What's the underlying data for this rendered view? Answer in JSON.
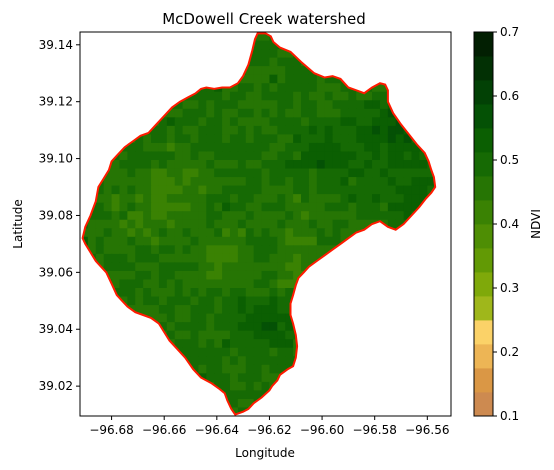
{
  "chart_data": {
    "type": "heatmap",
    "title": "McDowell Creek watershed",
    "xlabel": "Longitude",
    "ylabel": "Latitude",
    "xlim": [
      -96.692,
      -96.551
    ],
    "ylim": [
      39.0095,
      39.1445
    ],
    "xticks": [
      -96.68,
      -96.66,
      -96.64,
      -96.62,
      -96.6,
      -96.58,
      -96.56
    ],
    "xtick_labels": [
      "−96.68",
      "−96.66",
      "−96.64",
      "−96.62",
      "−96.60",
      "−96.58",
      "−96.56"
    ],
    "yticks": [
      39.02,
      39.04,
      39.06,
      39.08,
      39.1,
      39.12,
      39.14
    ],
    "ytick_labels": [
      "39.02",
      "39.04",
      "39.06",
      "39.08",
      "39.10",
      "39.12",
      "39.14"
    ],
    "grid": false,
    "colorbar": {
      "label": "NDVI",
      "range": [
        0.1,
        0.7
      ],
      "ticks": [
        0.1,
        0.2,
        0.3,
        0.4,
        0.5,
        0.6,
        0.7
      ],
      "tick_labels": [
        "0.1",
        "0.2",
        "0.3",
        "0.4",
        "0.5",
        "0.6",
        "0.7"
      ],
      "colors": [
        "#cd8a50",
        "#da9745",
        "#edb555",
        "#fbd268",
        "#9fb71b",
        "#7fa90a",
        "#629a05",
        "#4e8e04",
        "#3a8203",
        "#267504",
        "#166a04",
        "#0b5f02",
        "#045105",
        "#024105",
        "#023004",
        "#021f02"
      ]
    },
    "boundary": {
      "color": "#ff1a00",
      "lon": [
        -96.6245,
        -96.6215,
        -96.6195,
        -96.6185,
        -96.616,
        -96.612,
        -96.608,
        -96.603,
        -96.599,
        -96.596,
        -96.593,
        -96.59,
        -96.587,
        -96.584,
        -96.581,
        -96.578,
        -96.576,
        -96.575,
        -96.575,
        -96.573,
        -96.57,
        -96.567,
        -96.564,
        -96.561,
        -96.5595,
        -96.5585,
        -96.5575,
        -96.557,
        -96.5585,
        -96.5605,
        -96.563,
        -96.566,
        -96.569,
        -96.572,
        -96.575,
        -96.578,
        -96.581,
        -96.584,
        -96.587,
        -96.59,
        -96.593,
        -96.596,
        -96.599,
        -96.602,
        -96.605,
        -96.607,
        -96.609,
        -96.61,
        -96.611,
        -96.612,
        -96.612,
        -96.611,
        -96.61,
        -96.6095,
        -96.61,
        -96.611,
        -96.613,
        -96.616,
        -96.617,
        -96.619,
        -96.62,
        -96.623,
        -96.626,
        -96.628,
        -96.63,
        -96.633,
        -96.6345,
        -96.636,
        -96.637,
        -96.639,
        -96.642,
        -96.646,
        -96.649,
        -96.652,
        -96.655,
        -96.658,
        -96.66,
        -96.662,
        -96.665,
        -96.668,
        -96.671,
        -96.674,
        -96.676,
        -96.678,
        -96.68,
        -96.682,
        -96.684,
        -96.686,
        -96.688,
        -96.69,
        -96.691,
        -96.69,
        -96.688,
        -96.686,
        -96.685,
        -96.683,
        -96.681,
        -96.68,
        -96.678,
        -96.675,
        -96.672,
        -96.669,
        -96.666,
        -96.663,
        -96.66,
        -96.657,
        -96.654,
        -96.651,
        -96.648,
        -96.646,
        -96.644,
        -96.641,
        -96.638,
        -96.635,
        -96.632,
        -96.63,
        -96.628,
        -96.6265,
        -96.6255,
        -96.6245
      ],
      "lat": [
        39.144,
        39.144,
        39.143,
        39.141,
        39.139,
        39.1375,
        39.134,
        39.13,
        39.1285,
        39.129,
        39.128,
        39.125,
        39.124,
        39.123,
        39.125,
        39.1265,
        39.126,
        39.124,
        39.12,
        39.116,
        39.112,
        39.1085,
        39.105,
        39.102,
        39.099,
        39.096,
        39.0935,
        39.09,
        39.088,
        39.086,
        39.083,
        39.08,
        39.077,
        39.075,
        39.076,
        39.078,
        39.077,
        39.075,
        39.074,
        39.072,
        39.07,
        39.068,
        39.066,
        39.064,
        39.062,
        39.06,
        39.058,
        39.0555,
        39.052,
        39.049,
        39.045,
        39.042,
        39.038,
        39.034,
        39.03,
        39.027,
        39.026,
        39.024,
        39.022,
        39.02,
        39.0185,
        39.016,
        39.014,
        39.012,
        39.011,
        39.01,
        39.012,
        39.015,
        39.0175,
        39.019,
        39.021,
        39.023,
        39.026,
        39.03,
        39.033,
        39.036,
        39.039,
        39.042,
        39.044,
        39.045,
        39.046,
        39.048,
        39.05,
        39.052,
        39.056,
        39.06,
        39.062,
        39.064,
        39.067,
        39.07,
        39.072,
        39.076,
        39.08,
        39.085,
        39.09,
        39.093,
        39.096,
        39.099,
        39.101,
        39.104,
        39.106,
        39.108,
        39.109,
        39.112,
        39.115,
        39.118,
        39.12,
        39.1215,
        39.123,
        39.1245,
        39.125,
        39.1245,
        39.125,
        39.125,
        39.1265,
        39.129,
        39.133,
        39.138,
        39.142,
        39.144
      ]
    },
    "ndvi_cells": {
      "lon_min": -96.692,
      "lon_max": -96.551,
      "lat_min": 39.0095,
      "lat_max": 39.1445,
      "ncols": 47,
      "nrows": 45,
      "hotspots_lon": [
        -96.572,
        -96.565,
        -96.598,
        -96.625,
        -96.62,
        -96.655,
        -96.668,
        -96.64,
        -96.61,
        -96.612
      ],
      "hotspots_lat": [
        39.112,
        39.09,
        39.1,
        39.045,
        39.04,
        39.09,
        39.08,
        39.065,
        39.06,
        39.08
      ],
      "hotspots_ndvi": [
        0.56,
        0.53,
        0.53,
        0.52,
        0.52,
        0.44,
        0.43,
        0.44,
        0.43,
        0.45
      ],
      "base_ndvi": 0.48
    }
  }
}
